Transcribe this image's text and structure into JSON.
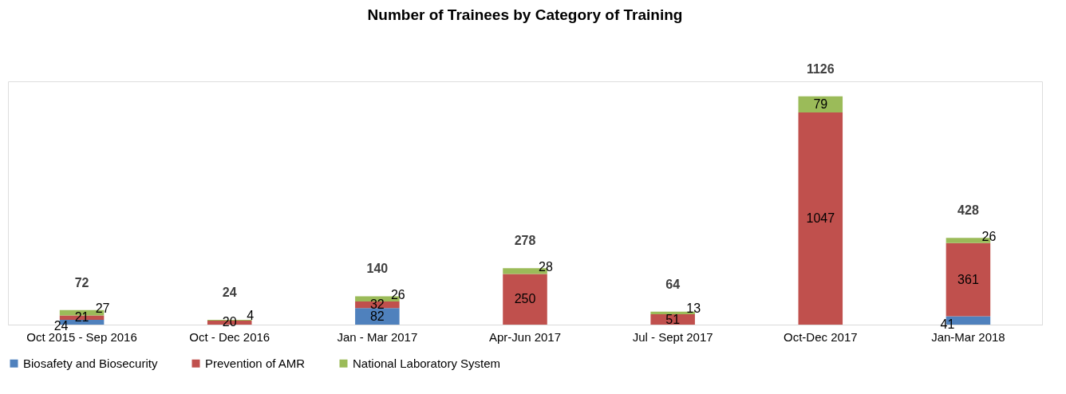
{
  "chart_data": {
    "type": "bar",
    "title": "Number of Trainees by Category of Training",
    "stacked": true,
    "data_labels": true,
    "legend": "bottom",
    "grid": false,
    "categories": [
      "Oct 2015 - Sep 2016",
      "Oct - Dec 2016",
      "Jan - Mar 2017",
      "Apr-Jun 2017",
      "Jul - Sept 2017",
      "Oct-Dec 2017",
      "Jan-Mar 2018"
    ],
    "series": [
      {
        "name": "Biosafety and Biosecurity",
        "color": "#4f81bd",
        "values": [
          24,
          null,
          82,
          null,
          null,
          null,
          41
        ]
      },
      {
        "name": "Prevention of AMR",
        "color": "#c0504d",
        "values": [
          21,
          20,
          32,
          250,
          51,
          1047,
          361
        ]
      },
      {
        "name": "National Laboratory System",
        "color": "#9bbb59",
        "values": [
          27,
          4,
          26,
          28,
          13,
          79,
          26
        ]
      }
    ],
    "totals": [
      "72",
      "24",
      "140",
      "278",
      "64",
      "1126",
      "428"
    ]
  }
}
